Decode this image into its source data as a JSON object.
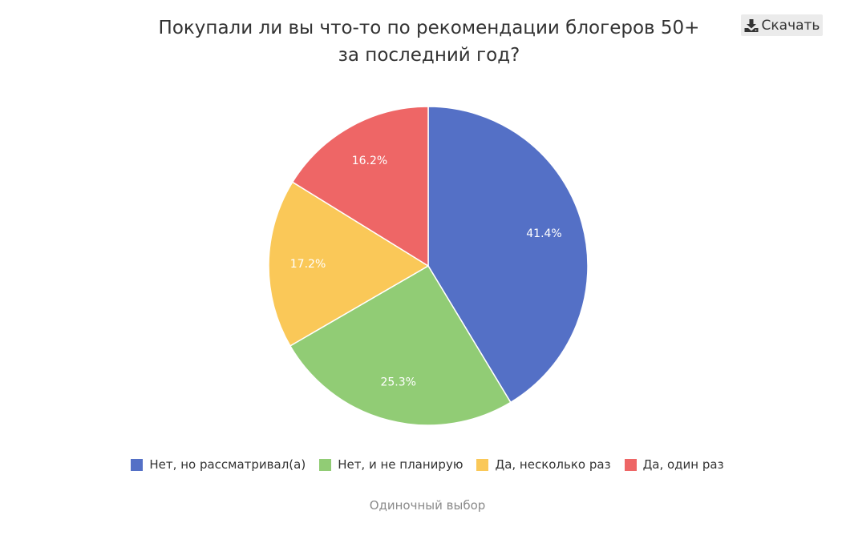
{
  "toolbar": {
    "download_label": "Скачать",
    "download_icon": "download-icon"
  },
  "chart_data": {
    "type": "pie",
    "title": "Покупали ли вы что-то по рекомендации блогеров 50+ за последний год?",
    "title_lines": [
      "Покупали ли вы что-то по рекомендации блогеров 50+",
      "за последний год?"
    ],
    "categories": [
      "Нет, но рассматривал(а)",
      "Нет, и не планирую",
      "Да, несколько раз",
      "Да, один раз"
    ],
    "values": [
      41.4,
      25.3,
      17.2,
      16.2
    ],
    "labels": [
      "41.4%",
      "25.3%",
      "17.2%",
      "16.2%"
    ],
    "colors": [
      "#5470c6",
      "#91cc75",
      "#fac858",
      "#ee6666"
    ],
    "legend_position": "bottom"
  },
  "footer": {
    "note": "Одиночный выбор"
  }
}
